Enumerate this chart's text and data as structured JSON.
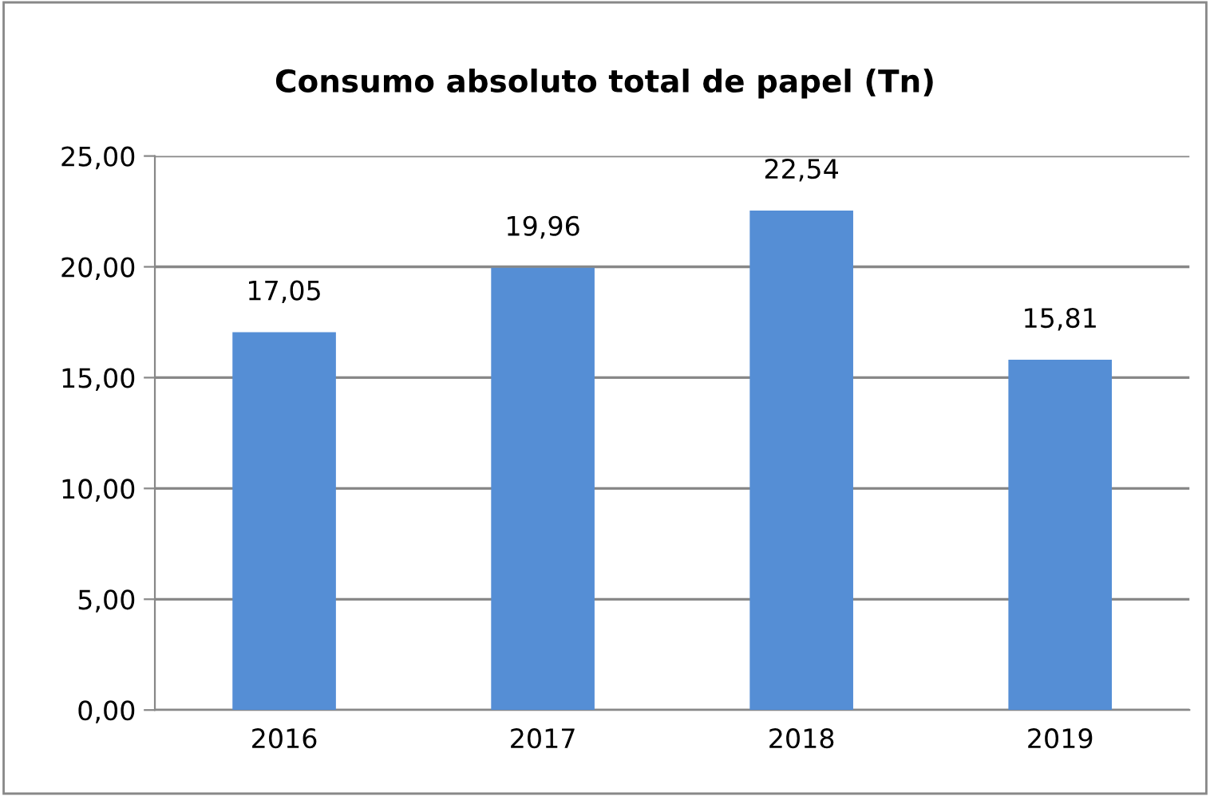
{
  "chart_data": {
    "type": "bar",
    "title": "Consumo absoluto total de papel (Tn)",
    "categories": [
      "2016",
      "2017",
      "2018",
      "2019"
    ],
    "values": [
      17.05,
      19.96,
      22.54,
      15.81
    ],
    "value_labels": [
      "17,05",
      "19,96",
      "22,54",
      "15,81"
    ],
    "color": "#558ed5",
    "ylim": [
      0,
      25
    ],
    "yticks": [
      {
        "value": 0,
        "label": "0,00"
      },
      {
        "value": 5,
        "label": "5,00"
      },
      {
        "value": 10,
        "label": "10,00"
      },
      {
        "value": 15,
        "label": "15,00"
      },
      {
        "value": 20,
        "label": "20,00"
      },
      {
        "value": 25,
        "label": "25,00"
      }
    ],
    "grid": "y",
    "legend": false
  }
}
